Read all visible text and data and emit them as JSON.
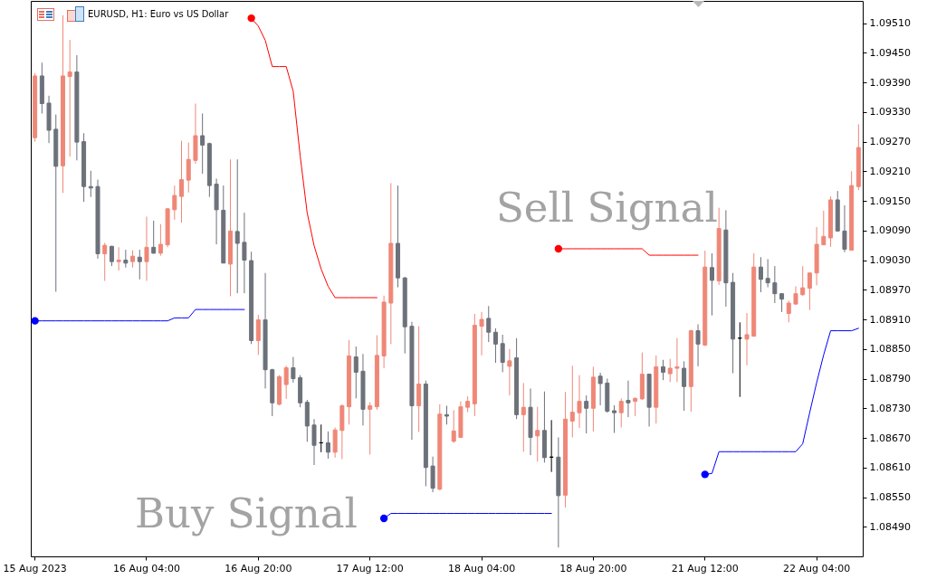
{
  "chart_data": {
    "type": "candlestick",
    "title": "EURUSD, H1: Euro vs US Dollar",
    "categories": [
      "15 Aug 2023",
      null,
      null,
      null,
      null,
      null,
      null,
      null,
      null,
      null,
      null,
      null,
      null,
      null,
      null,
      null,
      "16 Aug 04:00",
      null,
      null,
      null,
      null,
      null,
      null,
      null,
      null,
      null,
      null,
      null,
      null,
      null,
      null,
      null,
      "16 Aug 20:00",
      null,
      null,
      null,
      null,
      null,
      null,
      null,
      null,
      null,
      null,
      null,
      null,
      null,
      null,
      null,
      "17 Aug 12:00",
      null,
      null,
      null,
      null,
      null,
      null,
      null,
      null,
      null,
      null,
      null,
      null,
      null,
      null,
      null,
      "18 Aug 04:00",
      null,
      null,
      null,
      null,
      null,
      null,
      null,
      null,
      null,
      null,
      null,
      null,
      null,
      null,
      null,
      "18 Aug 20:00",
      null,
      null,
      null,
      null,
      null,
      null,
      null,
      null,
      null,
      null,
      null,
      null,
      null,
      null,
      null,
      "21 Aug 12:00",
      null,
      null,
      null,
      null,
      null,
      null,
      null,
      null,
      null,
      null,
      null,
      null,
      null,
      null,
      null,
      "22 Aug 04:00",
      null,
      null,
      null,
      null,
      null,
      null
    ],
    "ohlc": [
      [
        1.09278,
        1.09409,
        1.0927,
        1.09403
      ],
      [
        1.09403,
        1.0943,
        1.09327,
        1.09347
      ],
      [
        1.09348,
        1.09363,
        1.09267,
        1.09293
      ],
      [
        1.09295,
        1.09325,
        1.08966,
        1.0922
      ],
      [
        1.09221,
        1.09526,
        1.09166,
        1.09403
      ],
      [
        1.09402,
        1.09476,
        1.0924,
        1.09411
      ],
      [
        1.09411,
        1.09445,
        1.09232,
        1.09269
      ],
      [
        1.0927,
        1.09287,
        1.09148,
        1.09179
      ],
      [
        1.09179,
        1.09211,
        1.09158,
        1.09176
      ],
      [
        1.09179,
        1.09193,
        1.09033,
        1.09043
      ],
      [
        1.09043,
        1.09065,
        1.08988,
        1.0906
      ],
      [
        1.09058,
        1.09059,
        1.09018,
        1.09027
      ],
      [
        1.09027,
        1.09056,
        1.09009,
        1.0903
      ],
      [
        1.0903,
        1.09051,
        1.09015,
        1.09024
      ],
      [
        1.09027,
        1.0905,
        1.09015,
        1.09038
      ],
      [
        1.09036,
        1.09051,
        1.08991,
        1.09027
      ],
      [
        1.09027,
        1.09118,
        1.08988,
        1.09056
      ],
      [
        1.09056,
        1.0911,
        1.09043,
        1.09044
      ],
      [
        1.09044,
        1.09103,
        1.09039,
        1.09062
      ],
      [
        1.09061,
        1.09135,
        1.09056,
        1.09134
      ],
      [
        1.09132,
        1.09181,
        1.09112,
        1.09161
      ],
      [
        1.09159,
        1.09272,
        1.09106,
        1.09193
      ],
      [
        1.09192,
        1.09268,
        1.09167,
        1.09234
      ],
      [
        1.09232,
        1.09347,
        1.09225,
        1.09282
      ],
      [
        1.09282,
        1.09327,
        1.09205,
        1.09263
      ],
      [
        1.09266,
        1.09268,
        1.09158,
        1.09181
      ],
      [
        1.09184,
        1.09195,
        1.09062,
        1.09132
      ],
      [
        1.09131,
        1.09181,
        1.09024,
        1.09024
      ],
      [
        1.09022,
        1.09234,
        1.08957,
        1.09089
      ],
      [
        1.09088,
        1.09234,
        1.08963,
        1.09064
      ],
      [
        1.09066,
        1.09126,
        1.08963,
        1.0903
      ],
      [
        1.09029,
        1.09047,
        1.0886,
        1.08867
      ],
      [
        1.08867,
        1.08919,
        1.08838,
        1.08909
      ],
      [
        1.08909,
        1.09004,
        1.0877,
        1.08808
      ],
      [
        1.08808,
        1.0881,
        1.08714,
        1.08741
      ],
      [
        1.08738,
        1.08797,
        1.08736,
        1.08794
      ],
      [
        1.08778,
        1.08816,
        1.08749,
        1.08812
      ],
      [
        1.08812,
        1.08834,
        1.08782,
        1.0879
      ],
      [
        1.08792,
        1.08797,
        1.08732,
        1.08741
      ],
      [
        1.08742,
        1.08747,
        1.08662,
        1.08694
      ],
      [
        1.08696,
        1.08708,
        1.08615,
        1.08655
      ],
      [
        1.0866,
        1.08697,
        1.08641,
        1.0866
      ],
      [
        1.0866,
        1.08683,
        1.08628,
        1.08641
      ],
      [
        1.08641,
        1.08691,
        1.0863,
        1.08686
      ],
      [
        1.08685,
        1.08738,
        1.08627,
        1.08735
      ],
      [
        1.08733,
        1.08868,
        1.08697,
        1.08836
      ],
      [
        1.08834,
        1.08855,
        1.0875,
        1.08803
      ],
      [
        1.08805,
        1.0884,
        1.08695,
        1.08728
      ],
      [
        1.08728,
        1.08742,
        1.08636,
        1.08735
      ],
      [
        1.08733,
        1.08878,
        1.08727,
        1.08837
      ],
      [
        1.08836,
        1.08958,
        1.08811,
        1.08945
      ],
      [
        1.08943,
        1.09186,
        1.0886,
        1.09064
      ],
      [
        1.09064,
        1.09181,
        1.08975,
        1.08994
      ],
      [
        1.08994,
        1.08996,
        1.08841,
        1.08895
      ],
      [
        1.08896,
        1.08905,
        1.08666,
        1.08735
      ],
      [
        1.08735,
        1.08896,
        1.08682,
        1.08779
      ],
      [
        1.08779,
        1.08786,
        1.08572,
        1.0861
      ],
      [
        1.08613,
        1.08632,
        1.0856,
        1.08568
      ],
      [
        1.08566,
        1.08738,
        1.08564,
        1.08718
      ],
      [
        1.08717,
        1.08735,
        1.08697,
        1.08714
      ],
      [
        1.08663,
        1.08726,
        1.0866,
        1.08684
      ],
      [
        1.08671,
        1.08744,
        1.0867,
        1.08733
      ],
      [
        1.08732,
        1.08754,
        1.08722,
        1.08744
      ],
      [
        1.08739,
        1.08921,
        1.08714,
        1.08898
      ],
      [
        1.08896,
        1.08925,
        1.08837,
        1.0891
      ],
      [
        1.08912,
        1.08937,
        1.08864,
        1.08884
      ],
      [
        1.08884,
        1.08892,
        1.08822,
        1.0886
      ],
      [
        1.08861,
        1.08879,
        1.08803,
        1.08823
      ],
      [
        1.08815,
        1.0885,
        1.08756,
        1.08826
      ],
      [
        1.08832,
        1.08872,
        1.08708,
        1.08717
      ],
      [
        1.08717,
        1.08781,
        1.08642,
        1.08732
      ],
      [
        1.08732,
        1.0877,
        1.08635,
        1.08671
      ],
      [
        1.08674,
        1.08733,
        1.08622,
        1.08685
      ],
      [
        1.08685,
        1.08764,
        1.0862,
        1.0863
      ],
      [
        1.08631,
        1.08706,
        1.08601,
        1.08631
      ],
      [
        1.08631,
        1.08671,
        1.08448,
        1.08553
      ],
      [
        1.08554,
        1.08763,
        1.08529,
        1.08708
      ],
      [
        1.08704,
        1.08816,
        1.08671,
        1.08722
      ],
      [
        1.08721,
        1.08797,
        1.0869,
        1.08744
      ],
      [
        1.08744,
        1.08756,
        1.08679,
        1.0873
      ],
      [
        1.0873,
        1.08814,
        1.08683,
        1.08793
      ],
      [
        1.08795,
        1.08802,
        1.08736,
        1.0878
      ],
      [
        1.08781,
        1.0879,
        1.08721,
        1.08724
      ],
      [
        1.08725,
        1.08736,
        1.0868,
        1.08721
      ],
      [
        1.08721,
        1.0875,
        1.08691,
        1.08744
      ],
      [
        1.08746,
        1.08786,
        1.08712,
        1.08741
      ],
      [
        1.08744,
        1.08752,
        1.08714,
        1.0875
      ],
      [
        1.08749,
        1.08843,
        1.08747,
        1.08799
      ],
      [
        1.08799,
        1.08799,
        1.08693,
        1.08732
      ],
      [
        1.08732,
        1.08837,
        1.08699,
        1.08814
      ],
      [
        1.08814,
        1.08828,
        1.08787,
        1.08803
      ],
      [
        1.088,
        1.0883,
        1.08783,
        1.08811
      ],
      [
        1.08811,
        1.08872,
        1.08783,
        1.08814
      ],
      [
        1.08811,
        1.08825,
        1.08725,
        1.08774
      ],
      [
        1.08774,
        1.08889,
        1.08723,
        1.08887
      ],
      [
        1.08887,
        1.089,
        1.08815,
        1.0886
      ],
      [
        1.08858,
        1.09049,
        1.08856,
        1.09016
      ],
      [
        1.09015,
        1.09044,
        1.08918,
        1.08989
      ],
      [
        1.08988,
        1.09136,
        1.0898,
        1.09094
      ],
      [
        1.09091,
        1.09131,
        1.08936,
        1.08984
      ],
      [
        1.08985,
        1.09004,
        1.08801,
        1.0887
      ],
      [
        1.08872,
        1.08904,
        1.08753,
        1.08872
      ],
      [
        1.0887,
        1.08923,
        1.08817,
        1.08879
      ],
      [
        1.08876,
        1.09044,
        1.08875,
        1.09016
      ],
      [
        1.09016,
        1.09036,
        1.08965,
        1.08991
      ],
      [
        1.08993,
        1.09032,
        1.08975,
        1.08984
      ],
      [
        1.08984,
        1.09018,
        1.08943,
        1.08962
      ],
      [
        1.08962,
        1.08963,
        1.08925,
        1.08951
      ],
      [
        1.08922,
        1.08948,
        1.08904,
        1.08943
      ],
      [
        1.08941,
        1.08977,
        1.0894,
        1.08962
      ],
      [
        1.0896,
        1.09018,
        1.08958,
        1.08974
      ],
      [
        1.08973,
        1.09004,
        1.08929,
        1.09004
      ],
      [
        1.09004,
        1.09097,
        1.08979,
        1.09062
      ],
      [
        1.09061,
        1.0913,
        1.09061,
        1.09078
      ],
      [
        1.09075,
        1.09159,
        1.09057,
        1.09152
      ],
      [
        1.09152,
        1.0917,
        1.09088,
        1.09089
      ],
      [
        1.09089,
        1.09141,
        1.09046,
        1.09052
      ],
      [
        1.0905,
        1.0921,
        1.0905,
        1.09181
      ],
      [
        1.09179,
        1.09305,
        1.09172,
        1.09258
      ]
    ],
    "colors": [
      "#ef8777",
      "#6c717a",
      "#6c717a",
      "#6c717a",
      "#ef8777",
      "#ef8777",
      "#6c717a",
      "#6c717a",
      "#6c717a",
      "#6c717a",
      "#ef8777",
      "#6c717a",
      "#ef8777",
      "#6c717a",
      "#ef8777",
      "#6c717a",
      "#ef8777",
      "#6c717a",
      "#ef8777",
      "#ef8777",
      "#ef8777",
      "#ef8777",
      "#ef8777",
      "#ef8777",
      "#6c717a",
      "#6c717a",
      "#6c717a",
      "#6c717a",
      "#ef8777",
      "#6c717a",
      "#6c717a",
      "#6c717a",
      "#ef8777",
      "#6c717a",
      "#6c717a",
      "#ef8777",
      "#ef8777",
      "#6c717a",
      "#6c717a",
      "#6c717a",
      "#6c717a",
      "#000000",
      "#6c717a",
      "#ef8777",
      "#ef8777",
      "#ef8777",
      "#6c717a",
      "#6c717a",
      "#ef8777",
      "#ef8777",
      "#ef8777",
      "#ef8777",
      "#6c717a",
      "#6c717a",
      "#6c717a",
      "#ef8777",
      "#6c717a",
      "#6c717a",
      "#ef8777",
      "#6c717a",
      "#ef8777",
      "#ef8777",
      "#ef8777",
      "#ef8777",
      "#ef8777",
      "#6c717a",
      "#6c717a",
      "#6c717a",
      "#ef8777",
      "#6c717a",
      "#ef8777",
      "#6c717a",
      "#ef8777",
      "#6c717a",
      "#000000",
      "#6c717a",
      "#ef8777",
      "#ef8777",
      "#ef8777",
      "#6c717a",
      "#ef8777",
      "#6c717a",
      "#6c717a",
      "#6c717a",
      "#ef8777",
      "#6c717a",
      "#ef8777",
      "#ef8777",
      "#6c717a",
      "#ef8777",
      "#6c717a",
      "#ef8777",
      "#ef8777",
      "#6c717a",
      "#ef8777",
      "#6c717a",
      "#ef8777",
      "#6c717a",
      "#ef8777",
      "#6c717a",
      "#6c717a",
      "#000000",
      "#ef8777",
      "#ef8777",
      "#6c717a",
      "#6c717a",
      "#6c717a",
      "#6c717a",
      "#ef8777",
      "#ef8777",
      "#ef8777",
      "#ef8777",
      "#ef8777",
      "#ef8777",
      "#ef8777",
      "#6c717a",
      "#6c717a",
      "#ef8777",
      "#ef8777"
    ],
    "series": [
      {
        "type": "line",
        "color": "#ff0000",
        "values": [
          null,
          null,
          null,
          null,
          null,
          null,
          null,
          null,
          null,
          null,
          null,
          null,
          null,
          null,
          null,
          null,
          null,
          null,
          null,
          null,
          null,
          null,
          null,
          null,
          null,
          null,
          null,
          null,
          null,
          null,
          null,
          1.0952,
          1.09504,
          1.09475,
          1.09422,
          1.09422,
          1.09422,
          1.09372,
          1.09241,
          1.09126,
          1.09059,
          1.09012,
          1.08977,
          1.08954,
          1.08954,
          1.08954,
          1.08954,
          1.08954,
          1.08954,
          1.08954,
          null,
          null,
          null,
          null,
          null,
          null,
          null,
          null,
          null,
          null,
          null,
          null,
          null,
          null,
          null,
          null,
          null,
          null,
          null,
          null,
          null,
          null,
          null,
          null,
          null,
          1.09053,
          1.09053,
          1.09053,
          1.09053,
          1.09053,
          1.09053,
          1.09053,
          1.09053,
          1.09053,
          1.09053,
          1.09053,
          1.09053,
          1.09053,
          1.0904,
          1.0904,
          1.0904,
          1.0904,
          1.0904,
          1.0904,
          1.0904,
          1.0904,
          null,
          null,
          null,
          null,
          null,
          null,
          null,
          null,
          null,
          null,
          null,
          null,
          null,
          null,
          null,
          null,
          null,
          null,
          null,
          null,
          null,
          null,
          null
        ]
      },
      {
        "type": "line",
        "color": "#0000ff",
        "values": [
          1.08907,
          1.08907,
          1.08907,
          1.08907,
          1.08907,
          1.08907,
          1.08907,
          1.08907,
          1.08907,
          1.08907,
          1.08907,
          1.08907,
          1.08907,
          1.08907,
          1.08907,
          1.08907,
          1.08907,
          1.08907,
          1.08907,
          1.08907,
          1.08913,
          1.08913,
          1.08913,
          1.0893,
          1.0893,
          1.0893,
          1.0893,
          1.0893,
          1.0893,
          1.0893,
          1.0893,
          null,
          null,
          null,
          null,
          null,
          null,
          null,
          null,
          null,
          null,
          null,
          null,
          null,
          null,
          null,
          null,
          null,
          null,
          null,
          1.08507,
          1.08517,
          1.08517,
          1.08517,
          1.08517,
          1.08517,
          1.08517,
          1.08517,
          1.08517,
          1.08517,
          1.08517,
          1.08517,
          1.08517,
          1.08517,
          1.08517,
          1.08517,
          1.08517,
          1.08517,
          1.08517,
          1.08517,
          1.08517,
          1.08517,
          1.08517,
          1.08517,
          1.08517,
          null,
          null,
          null,
          null,
          null,
          null,
          null,
          null,
          null,
          null,
          null,
          null,
          null,
          null,
          null,
          null,
          null,
          null,
          null,
          null,
          null,
          1.08596,
          1.08598,
          1.08642,
          1.08642,
          1.08642,
          1.08642,
          1.08642,
          1.08642,
          1.08642,
          1.08642,
          1.08642,
          1.08642,
          1.08642,
          1.08642,
          1.08658,
          1.08721,
          1.08782,
          1.08838,
          1.08887,
          1.08887,
          1.08887,
          1.08887,
          1.08892
        ]
      },
      {
        "type": "scatter",
        "color": "#ff0000",
        "marker": "circle",
        "values": [
          null,
          null,
          null,
          null,
          null,
          null,
          null,
          null,
          null,
          null,
          null,
          null,
          null,
          null,
          null,
          null,
          null,
          null,
          null,
          null,
          null,
          null,
          null,
          null,
          null,
          null,
          null,
          null,
          null,
          null,
          null,
          1.0952,
          null,
          null,
          null,
          null,
          null,
          null,
          null,
          null,
          null,
          null,
          null,
          null,
          null,
          null,
          null,
          null,
          null,
          null,
          null,
          null,
          null,
          null,
          null,
          null,
          null,
          null,
          null,
          null,
          null,
          null,
          null,
          null,
          null,
          null,
          null,
          null,
          null,
          null,
          null,
          null,
          null,
          null,
          null,
          1.09053,
          null,
          null,
          null,
          null,
          null,
          null,
          null,
          null,
          null,
          null,
          null,
          null,
          null,
          null,
          null,
          null,
          null,
          null,
          null,
          null,
          null,
          null,
          null,
          null,
          null,
          null,
          null,
          null,
          null,
          null,
          null,
          null,
          null,
          null,
          null,
          null,
          null,
          null,
          null,
          null,
          null,
          null,
          null
        ]
      },
      {
        "type": "scatter",
        "color": "#0000ff",
        "marker": "circle",
        "values": [
          1.08907,
          null,
          null,
          null,
          null,
          null,
          null,
          null,
          null,
          null,
          null,
          null,
          null,
          null,
          null,
          null,
          null,
          null,
          null,
          null,
          null,
          null,
          null,
          null,
          null,
          null,
          null,
          null,
          null,
          null,
          null,
          null,
          null,
          null,
          null,
          null,
          null,
          null,
          null,
          null,
          null,
          null,
          null,
          null,
          null,
          null,
          null,
          null,
          null,
          null,
          1.08507,
          null,
          null,
          null,
          null,
          null,
          null,
          null,
          null,
          null,
          null,
          null,
          null,
          null,
          null,
          null,
          null,
          null,
          null,
          null,
          null,
          null,
          null,
          null,
          null,
          null,
          null,
          null,
          null,
          null,
          null,
          null,
          null,
          null,
          null,
          null,
          null,
          null,
          null,
          null,
          null,
          null,
          null,
          null,
          null,
          null,
          1.08596,
          null,
          null,
          null,
          null,
          null,
          null,
          null,
          null,
          null,
          null,
          null,
          null,
          null,
          null,
          null,
          null,
          null,
          null,
          null,
          null,
          null,
          null
        ]
      }
    ],
    "ylim": [
      1.0843,
      1.09555
    ],
    "yticks": [
      {
        "value": 1.0849,
        "label": "1.08490"
      },
      {
        "value": 1.0855,
        "label": "1.08550"
      },
      {
        "value": 1.0861,
        "label": "1.08610"
      },
      {
        "value": 1.0867,
        "label": "1.08670"
      },
      {
        "value": 1.0873,
        "label": "1.08730"
      },
      {
        "value": 1.0879,
        "label": "1.08790"
      },
      {
        "value": 1.0885,
        "label": "1.08850"
      },
      {
        "value": 1.0891,
        "label": "1.08910"
      },
      {
        "value": 1.0897,
        "label": "1.08970"
      },
      {
        "value": 1.0903,
        "label": "1.09030"
      },
      {
        "value": 1.0909,
        "label": "1.09090"
      },
      {
        "value": 1.0915,
        "label": "1.09150"
      },
      {
        "value": 1.0921,
        "label": "1.09210"
      },
      {
        "value": 1.0927,
        "label": "1.09270"
      },
      {
        "value": 1.0933,
        "label": "1.09330"
      },
      {
        "value": 1.0939,
        "label": "1.09390"
      },
      {
        "value": 1.0945,
        "label": "1.09450"
      },
      {
        "value": 1.0951,
        "label": "1.09510"
      }
    ],
    "annotations": [
      "Sell Signal",
      "Buy Signal"
    ]
  }
}
